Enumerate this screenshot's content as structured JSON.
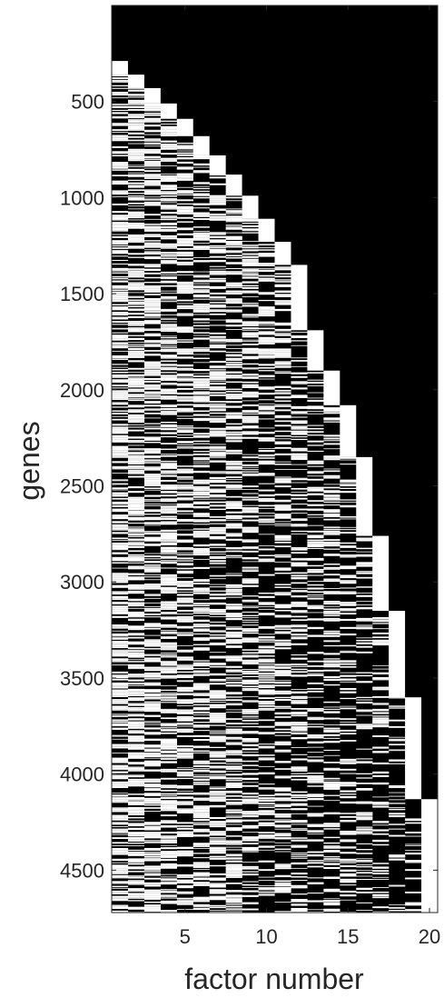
{
  "chart_data": {
    "type": "heatmap",
    "title": "",
    "xlabel": "factor number",
    "ylabel": "genes",
    "x_ticks": [
      5,
      10,
      15,
      20
    ],
    "y_ticks": [
      500,
      1000,
      1500,
      2000,
      2500,
      3000,
      3500,
      4000,
      4500
    ],
    "x_range": [
      0.5,
      20.5
    ],
    "y_range": [
      0.5,
      4720.5
    ],
    "n_factors": 20,
    "n_genes": 4720,
    "colormap": {
      "0": "#000000",
      "1": "#ffffff"
    },
    "grid": false,
    "legend": "none",
    "binary_values": "1 = white, 0 = black",
    "block_end_rows": [
      360,
      430,
      510,
      590,
      680,
      780,
      880,
      990,
      1110,
      1230,
      1350,
      1690,
      1900,
      2080,
      2350,
      2760,
      3150,
      3600,
      4130,
      4720
    ],
    "axis_color": "#262626",
    "background": "#ffffff"
  }
}
